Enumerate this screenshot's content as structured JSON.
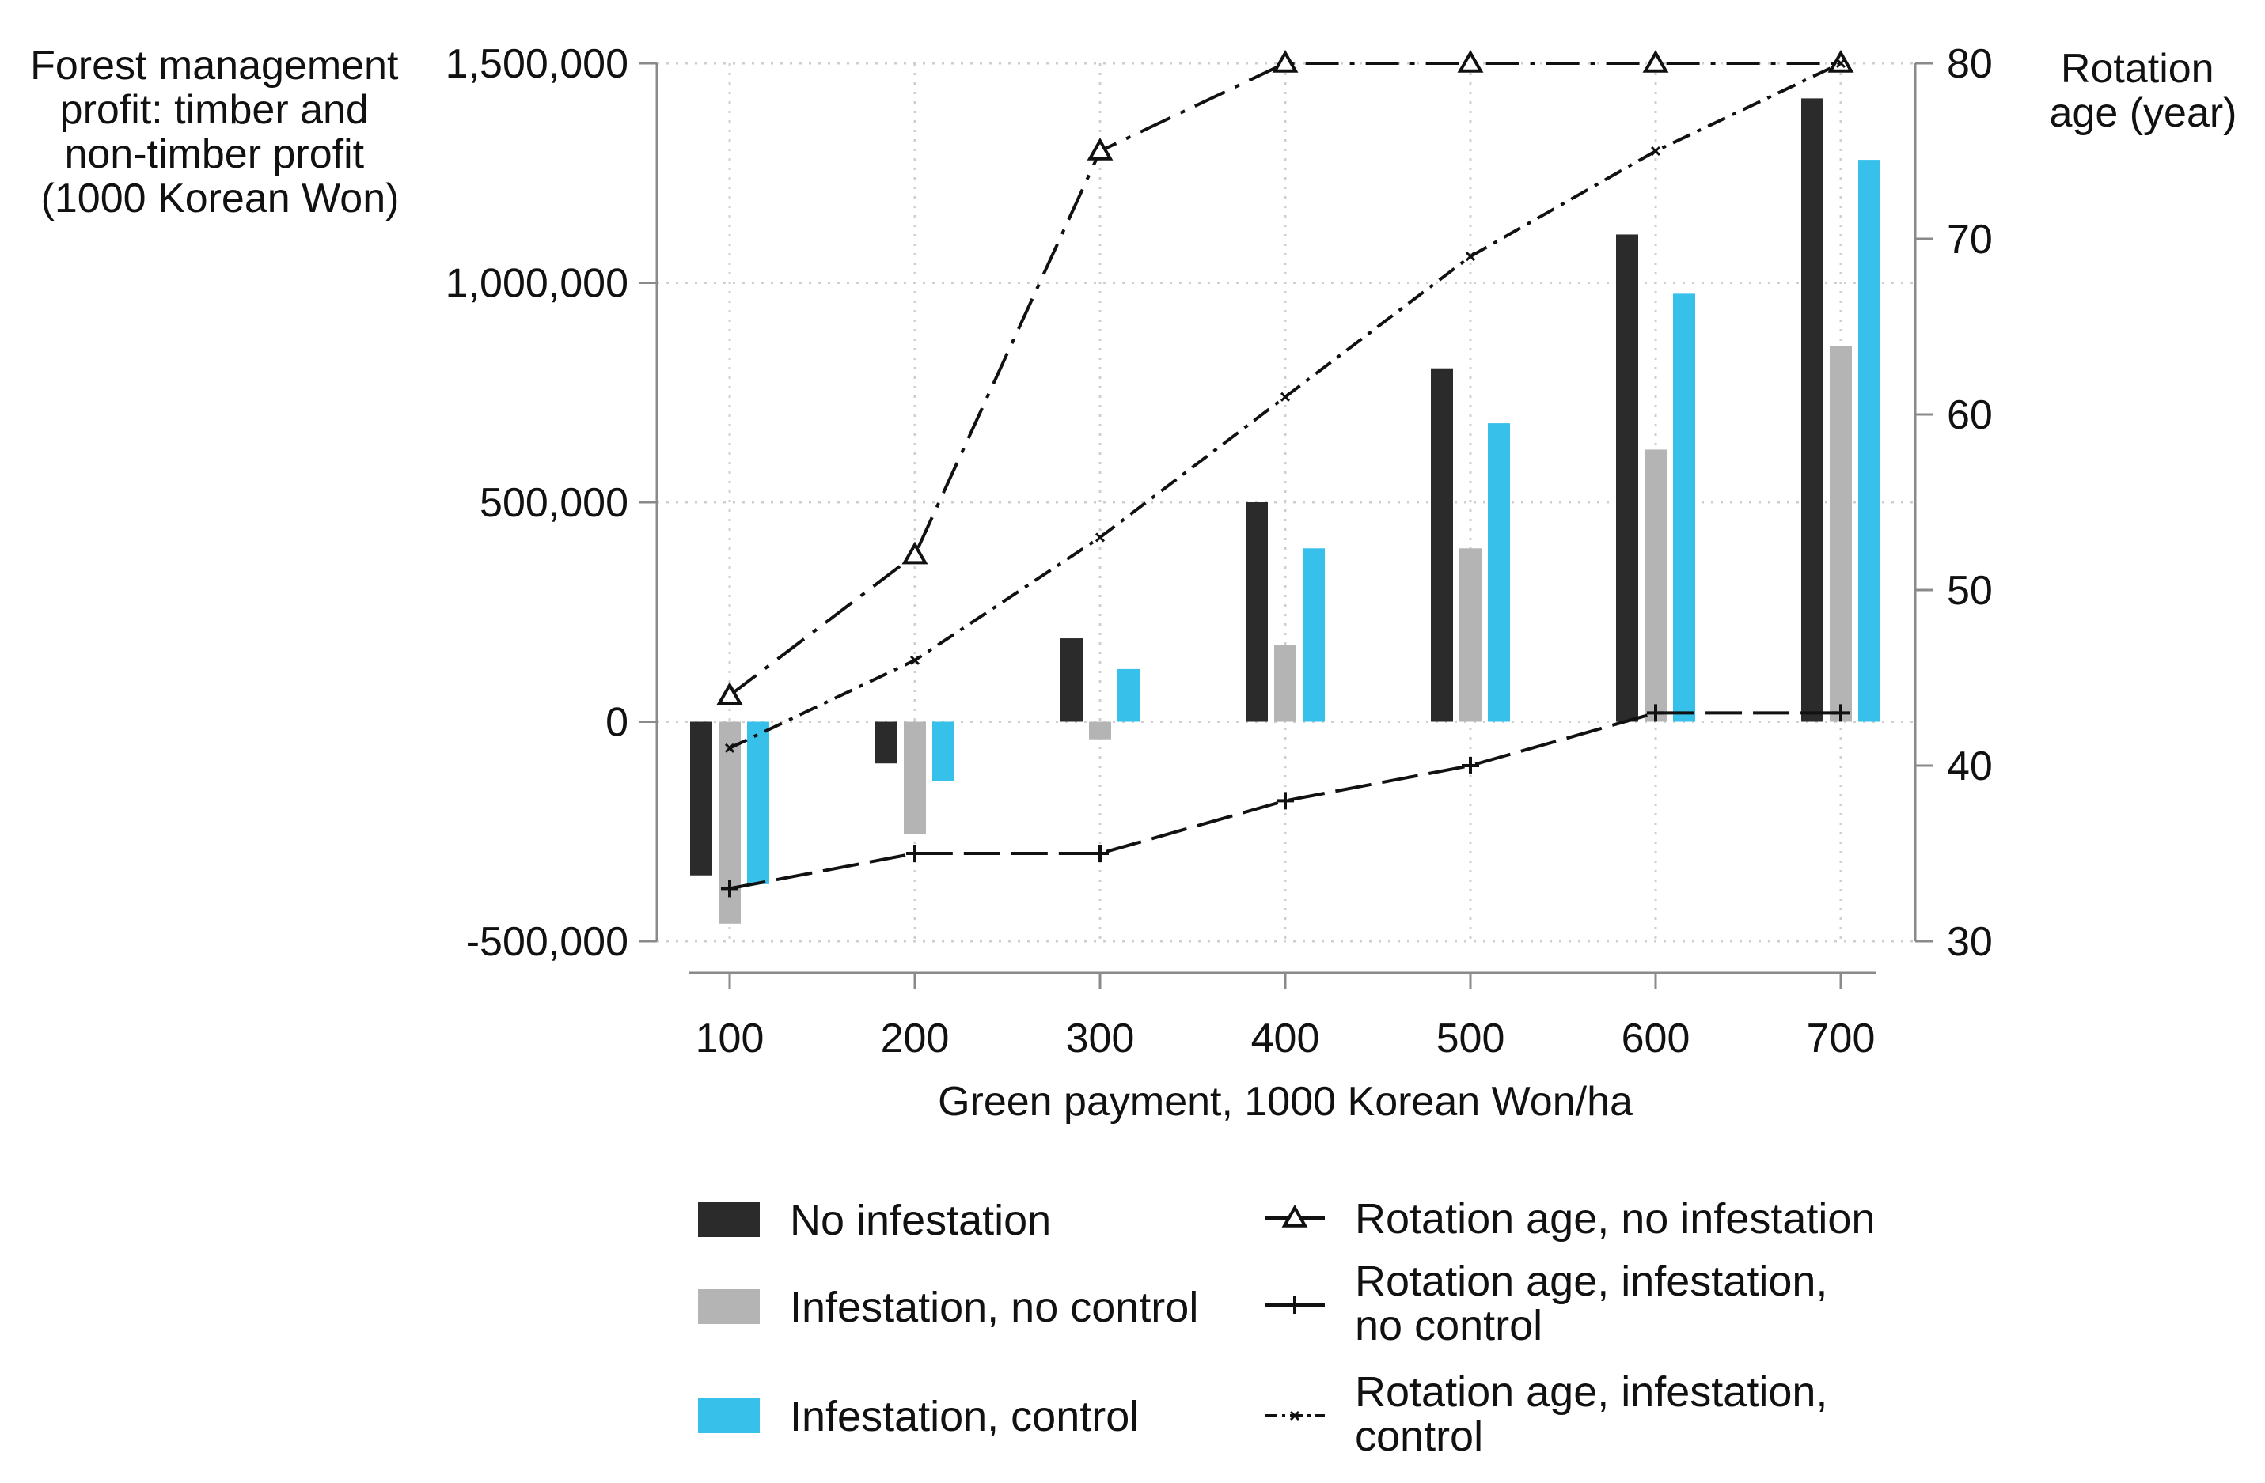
{
  "chart_data": {
    "type": "bar",
    "categories": [
      "100",
      "200",
      "300",
      "400",
      "500",
      "600",
      "700"
    ],
    "xlabel": "Green payment, 1000 Korean Won/ha",
    "ylabel": [
      "Forest management",
      "profit: timber and",
      "non-timber profit",
      "(1000 Korean Won)"
    ],
    "y2label": [
      "Rotation",
      "age (year)"
    ],
    "ylim": [
      -500000,
      1500000
    ],
    "y_ticks": [
      -500000,
      0,
      500000,
      1000000,
      1500000
    ],
    "y_tick_labels": [
      "-500,000",
      "0",
      "500,000",
      "1,000,000",
      "1,500,000"
    ],
    "y2lim": [
      30,
      80
    ],
    "y2_ticks": [
      30,
      40,
      50,
      60,
      70,
      80
    ],
    "y2_tick_labels": [
      "30",
      "40",
      "50",
      "60",
      "70",
      "80"
    ],
    "grid": true,
    "bar_series": [
      {
        "name": "No infestation",
        "color": "#2b2b2b",
        "values": [
          -350000,
          -95000,
          190000,
          500000,
          805000,
          1110000,
          1420000
        ]
      },
      {
        "name": "Infestation, no control",
        "color": "#b4b4b4",
        "values": [
          -460000,
          -255000,
          -40000,
          175000,
          395000,
          620000,
          855000
        ]
      },
      {
        "name": "Infestation, control",
        "color": "#36c0ea",
        "values": [
          -370000,
          -135000,
          120000,
          395000,
          680000,
          975000,
          1280000
        ]
      }
    ],
    "line_series": [
      {
        "name": "Rotation age, no infestation",
        "legend_lines": [
          "Rotation age, no infestation"
        ],
        "marker": "triangle",
        "dash": "long-dash-dot",
        "values": [
          44,
          52,
          75,
          80,
          80,
          80,
          80
        ]
      },
      {
        "name": "Rotation age, infestation, no control",
        "legend_lines": [
          "Rotation age, infestation,",
          "no control"
        ],
        "marker": "plus",
        "dash": "long-dash",
        "values": [
          33,
          35,
          35,
          38,
          40,
          43,
          43
        ]
      },
      {
        "name": "Rotation age, infestation, control",
        "legend_lines": [
          "Rotation age, infestation,",
          "control"
        ],
        "marker": "small-x",
        "dash": "dash-dot",
        "values": [
          41,
          46,
          53,
          61,
          69,
          75,
          80
        ]
      }
    ]
  }
}
